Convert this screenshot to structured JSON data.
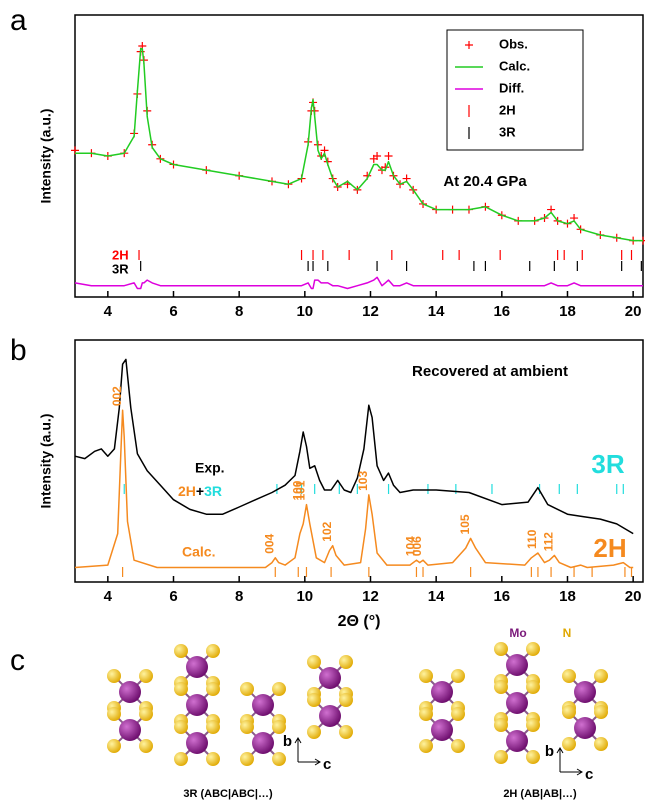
{
  "panel_labels": [
    "a",
    "b",
    "c"
  ],
  "chart_data": [
    {
      "type": "line",
      "ylabel": "Intensity (a.u.)",
      "annotation": "At 20.4 GPa",
      "legend": "upper right",
      "xlim": [
        3,
        20.3
      ],
      "ylim": [
        0,
        100
      ],
      "xticks": [
        4,
        6,
        8,
        10,
        12,
        14,
        16,
        18,
        20
      ],
      "x": [
        3,
        3.5,
        4,
        4.5,
        4.8,
        4.9,
        5.0,
        5.05,
        5.1,
        5.2,
        5.35,
        5.6,
        6,
        7,
        8,
        9,
        9.5,
        9.9,
        10.1,
        10.2,
        10.25,
        10.3,
        10.4,
        10.5,
        10.6,
        10.7,
        10.85,
        11.0,
        11.3,
        11.6,
        11.9,
        12.1,
        12.2,
        12.35,
        12.45,
        12.55,
        12.7,
        12.9,
        13.1,
        13.3,
        13.6,
        14.0,
        14.5,
        15.0,
        15.5,
        16.0,
        16.5,
        17.0,
        17.3,
        17.5,
        17.7,
        18.0,
        18.2,
        18.4,
        19.0,
        19.5,
        20.0,
        20.3
      ],
      "series": [
        {
          "name": "Obs.",
          "color": "#ff0000",
          "style": "markers",
          "values": [
            52,
            51,
            50,
            51,
            58,
            72,
            87,
            89,
            84,
            66,
            54,
            49,
            47,
            45,
            43,
            41,
            40,
            42,
            55,
            66,
            69,
            66,
            54,
            50,
            52,
            48,
            42,
            39,
            40,
            38,
            43,
            49,
            50,
            45,
            46,
            50,
            43,
            40,
            42,
            38,
            33,
            31,
            31,
            31,
            32,
            29,
            27,
            27,
            28,
            31,
            27,
            26,
            28,
            24,
            22,
            21,
            20,
            20
          ]
        },
        {
          "name": "Calc.",
          "color": "#22cc22",
          "style": "line",
          "values": [
            51,
            51,
            50,
            51,
            57,
            73,
            88,
            88,
            83,
            64,
            53,
            49,
            47,
            45,
            43,
            41,
            40,
            42,
            54,
            67,
            70,
            64,
            52,
            49,
            51,
            47,
            42,
            39,
            41,
            38,
            42,
            47,
            47,
            45,
            45,
            48,
            43,
            40,
            41,
            38,
            33,
            31,
            31,
            31,
            32,
            29,
            27,
            27,
            28,
            30,
            27,
            26,
            27,
            24,
            22,
            21,
            20,
            20
          ]
        },
        {
          "name": "Diff.",
          "color": "#dd00dd",
          "style": "line",
          "values": [
            5,
            4,
            4,
            4,
            5,
            3,
            3,
            5,
            5,
            6,
            5,
            4,
            4,
            4,
            4,
            4,
            4,
            4,
            5,
            3,
            3,
            6,
            6,
            5,
            5,
            5,
            4,
            4,
            3,
            4,
            5,
            6,
            7,
            4,
            5,
            6,
            4,
            4,
            5,
            4,
            4,
            4,
            4,
            4,
            4,
            4,
            4,
            4,
            4,
            5,
            4,
            4,
            5,
            4,
            4,
            4,
            4,
            4
          ]
        }
      ],
      "reflections": [
        {
          "name": "2H",
          "color": "#ff0000",
          "positions": [
            4.95,
            9.9,
            10.25,
            10.55,
            11.35,
            12.65,
            14.2,
            14.7,
            15.95,
            17.7,
            17.9,
            18.45,
            19.65,
            19.95
          ]
        },
        {
          "name": "3R",
          "color": "#000000",
          "positions": [
            5.0,
            10.1,
            10.25,
            10.7,
            12.2,
            13.1,
            15.15,
            15.5,
            16.85,
            17.6,
            18.3,
            19.65,
            20.25
          ]
        }
      ]
    },
    {
      "type": "line",
      "ylabel": "Intensity (a.u.)",
      "xlabel": "2Θ (°)",
      "annotation": "Recovered at ambient",
      "phase_joiner": "+",
      "xlim": [
        3,
        20.3
      ],
      "ylim": [
        0,
        100
      ],
      "xticks": [
        4,
        6,
        8,
        10,
        12,
        14,
        16,
        18,
        20
      ],
      "series": [
        {
          "name": "Exp.",
          "color": "#000000",
          "style": "line",
          "x": [
            3,
            3.3,
            3.6,
            3.8,
            4.0,
            4.2,
            4.35,
            4.45,
            4.55,
            4.7,
            4.9,
            5.2,
            5.6,
            6,
            6.5,
            7,
            7.5,
            8,
            8.5,
            9,
            9.4,
            9.7,
            9.85,
            9.95,
            10.05,
            10.15,
            10.3,
            10.45,
            10.6,
            10.8,
            11.0,
            11.2,
            11.4,
            11.6,
            11.8,
            11.95,
            12.05,
            12.2,
            12.4,
            12.55,
            12.7,
            12.9,
            13.3,
            14,
            15,
            16,
            16.8,
            17.1,
            17.4,
            18,
            18.5,
            19,
            19.5,
            20
          ],
          "values": [
            52,
            51,
            54,
            55,
            52,
            55,
            72,
            90,
            92,
            72,
            53,
            46,
            40,
            34,
            30,
            28,
            28,
            31,
            34,
            37,
            40,
            44,
            54,
            62,
            56,
            47,
            48,
            42,
            38,
            38,
            42,
            38,
            37,
            43,
            55,
            73,
            68,
            48,
            42,
            45,
            40,
            37,
            38,
            38,
            37,
            32,
            33,
            39,
            32,
            28,
            27,
            26,
            24,
            20
          ]
        },
        {
          "name": "Calc.",
          "color": "#f58a1f",
          "style": "line",
          "x": [
            3,
            4.0,
            4.3,
            4.4,
            4.45,
            4.5,
            4.6,
            4.8,
            5.5,
            8.8,
            9.0,
            9.1,
            9.2,
            9.4,
            9.7,
            9.85,
            9.95,
            10.05,
            10.15,
            10.35,
            10.6,
            10.75,
            10.85,
            10.95,
            11.2,
            11.7,
            11.85,
            11.95,
            12.05,
            12.2,
            12.5,
            13.2,
            13.4,
            13.5,
            13.6,
            13.75,
            14.5,
            14.9,
            15.05,
            15.2,
            15.5,
            16.7,
            16.9,
            17.1,
            17.3,
            17.45,
            17.6,
            17.75,
            18.1,
            18.4,
            18.6,
            19.4,
            19.7,
            19.9,
            20
          ],
          "values": [
            6,
            7,
            20,
            55,
            71,
            60,
            25,
            9,
            6,
            6,
            8,
            10,
            8,
            7,
            10,
            20,
            24,
            32,
            24,
            10,
            8,
            13,
            15,
            11,
            7,
            8,
            22,
            36,
            28,
            12,
            7,
            7,
            9,
            8,
            9,
            7,
            8,
            14,
            18,
            14,
            8,
            7,
            10,
            12,
            8,
            9,
            11,
            8,
            6,
            7,
            6,
            7,
            8,
            6,
            6
          ]
        }
      ],
      "reflections": [
        {
          "name": "3R",
          "color": "#22dddd",
          "positions": [
            4.5,
            9.15,
            9.9,
            10.3,
            11.05,
            11.6,
            12.55,
            13.75,
            14.6,
            15.7,
            17.15,
            17.75,
            18.3,
            19.5,
            19.7
          ]
        },
        {
          "name": "2H",
          "color": "#f58a1f",
          "positions": [
            4.45,
            9.1,
            9.8,
            10.05,
            10.8,
            11.95,
            13.4,
            13.6,
            15.05,
            16.9,
            17.1,
            17.5,
            18.2,
            18.75,
            19.75,
            19.95
          ]
        }
      ],
      "peak_labels": {
        "labels": [
          "002",
          "004",
          "100",
          "101",
          "102",
          "103",
          "104",
          "006",
          "105",
          "110",
          "112"
        ],
        "x": [
          4.45,
          9.1,
          9.95,
          10.05,
          10.85,
          11.95,
          13.4,
          13.6,
          15.05,
          17.1,
          17.6
        ]
      }
    }
  ],
  "structure_panel": {
    "atom_labels": [
      "Mo",
      "N"
    ],
    "axis_labels": [
      "b",
      "c"
    ],
    "captions": [
      "3R (ABC|ABC|…)",
      "2H (AB|AB|…)"
    ]
  }
}
